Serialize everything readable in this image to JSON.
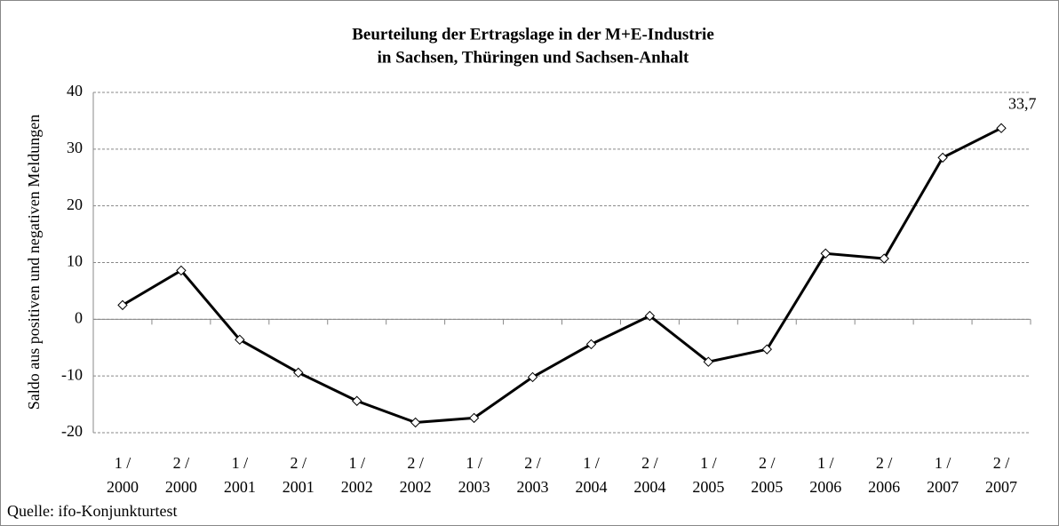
{
  "chart_data": {
    "type": "line",
    "title": [
      "Beurteilung der Ertragslage in der M+E-Industrie",
      "in Sachsen, Thüringen und Sachsen-Anhalt"
    ],
    "y_label": "Saldo aus positiven und negativen Meldungen",
    "source": "Quelle: ifo-Konjunkturtest",
    "categories": [
      "1 / 2000",
      "2 / 2000",
      "1 / 2001",
      "2 / 2001",
      "1 / 2002",
      "2 / 2002",
      "1 / 2003",
      "2 / 2003",
      "1 / 2004",
      "2 / 2004",
      "1 / 2005",
      "2 / 2005",
      "1 / 2006",
      "2 / 2006",
      "1 / 2007",
      "2 / 2007"
    ],
    "series": [
      {
        "name": "Saldo",
        "color": "#000000",
        "values": [
          2.5,
          8.6,
          -3.6,
          -9.4,
          -14.4,
          -18.2,
          -17.4,
          -10.2,
          -4.4,
          0.6,
          -7.5,
          -5.3,
          11.6,
          10.7,
          28.5,
          33.7
        ],
        "value_labels": [
          null,
          null,
          null,
          null,
          null,
          null,
          null,
          null,
          null,
          null,
          null,
          null,
          null,
          null,
          null,
          "33,7"
        ]
      }
    ],
    "ylim": [
      -20,
      40
    ],
    "yticks": [
      -20,
      -10,
      0,
      10,
      20,
      30,
      40
    ],
    "grid": true
  }
}
